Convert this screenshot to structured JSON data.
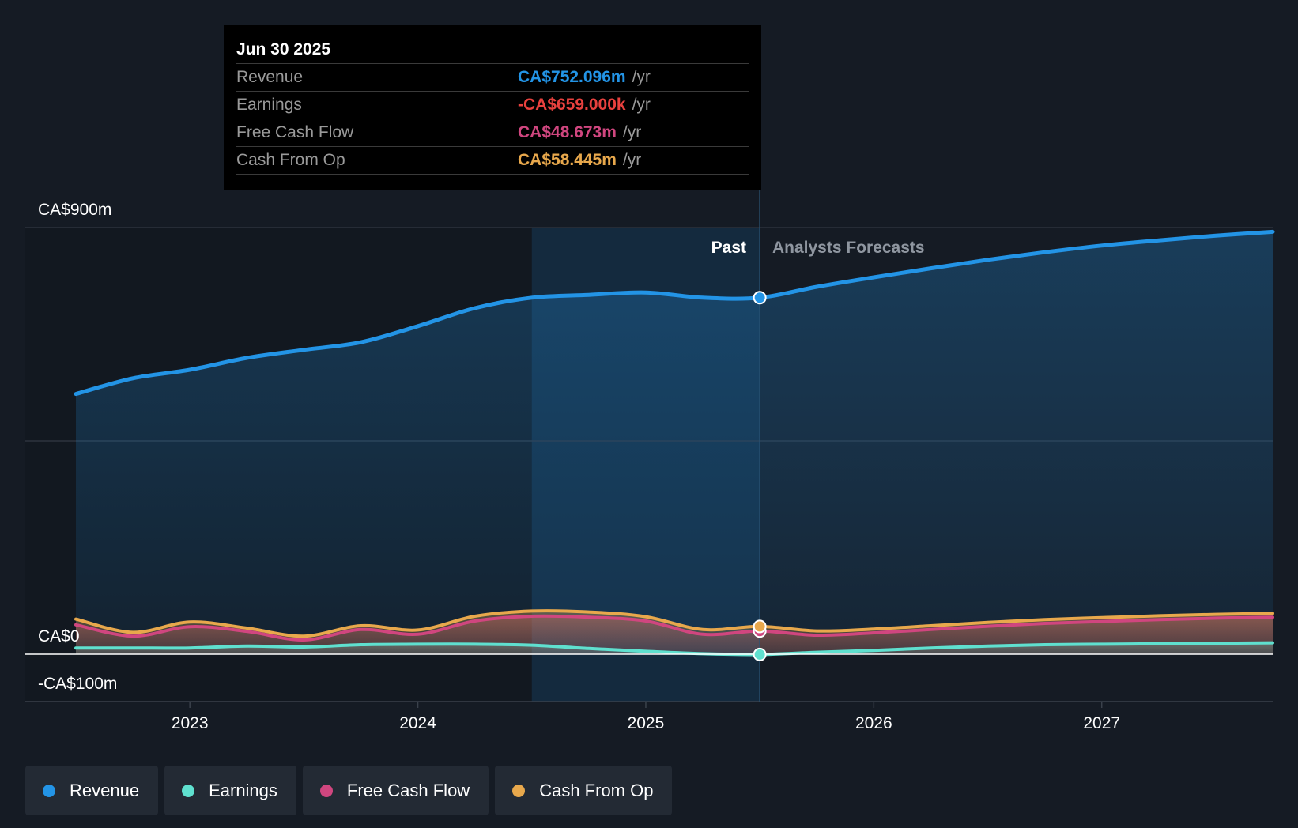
{
  "tooltip": {
    "date": "Jun 30 2025",
    "rows": [
      {
        "label": "Revenue",
        "value": "CA$752.096m",
        "unit": "/yr",
        "color": "#2394e6"
      },
      {
        "label": "Earnings",
        "value": "-CA$659.000k",
        "unit": "/yr",
        "color": "#e8413e"
      },
      {
        "label": "Free Cash Flow",
        "value": "CA$48.673m",
        "unit": "/yr",
        "color": "#d0467f"
      },
      {
        "label": "Cash From Op",
        "value": "CA$58.445m",
        "unit": "/yr",
        "color": "#e8a84c"
      }
    ]
  },
  "legend": [
    {
      "label": "Revenue",
      "color": "#2394e6"
    },
    {
      "label": "Earnings",
      "color": "#5fe0cf"
    },
    {
      "label": "Free Cash Flow",
      "color": "#d0467f"
    },
    {
      "label": "Cash From Op",
      "color": "#e8a84c"
    }
  ],
  "chart_data": {
    "type": "area",
    "y_axis_labels": [
      "CA$900m",
      "CA$0",
      "-CA$100m"
    ],
    "ylim": [
      -100,
      900
    ],
    "xlim": [
      2022.5,
      2027.75
    ],
    "x_ticks": [
      2023,
      2024,
      2025,
      2026,
      2027
    ],
    "x_tick_labels": [
      "2023",
      "2024",
      "2025",
      "2026",
      "2027"
    ],
    "past_label": "Past",
    "forecast_label": "Analysts Forecasts",
    "divider_x": 2025.5,
    "highlight_range": [
      2024.5,
      2025.5
    ],
    "series": [
      {
        "name": "Revenue",
        "color": "#2394e6",
        "points": [
          [
            2022.5,
            549
          ],
          [
            2022.75,
            582
          ],
          [
            2023,
            600
          ],
          [
            2023.25,
            625
          ],
          [
            2023.5,
            642
          ],
          [
            2023.75,
            658
          ],
          [
            2024,
            692
          ],
          [
            2024.25,
            730
          ],
          [
            2024.5,
            752
          ],
          [
            2024.75,
            758
          ],
          [
            2025,
            763
          ],
          [
            2025.25,
            752
          ],
          [
            2025.5,
            752
          ],
          [
            2025.75,
            775
          ],
          [
            2026,
            795
          ],
          [
            2026.25,
            814
          ],
          [
            2026.5,
            832
          ],
          [
            2026.75,
            848
          ],
          [
            2027,
            862
          ],
          [
            2027.25,
            873
          ],
          [
            2027.5,
            883
          ],
          [
            2027.75,
            891
          ]
        ]
      },
      {
        "name": "Earnings",
        "color": "#5fe0cf",
        "points": [
          [
            2022.5,
            13
          ],
          [
            2022.75,
            13
          ],
          [
            2023,
            13
          ],
          [
            2023.25,
            17
          ],
          [
            2023.5,
            15
          ],
          [
            2023.75,
            20
          ],
          [
            2024,
            21
          ],
          [
            2024.25,
            21
          ],
          [
            2024.5,
            19
          ],
          [
            2024.75,
            12
          ],
          [
            2025,
            6
          ],
          [
            2025.25,
            1
          ],
          [
            2025.5,
            -0.659
          ],
          [
            2025.75,
            4
          ],
          [
            2026,
            8
          ],
          [
            2026.25,
            13
          ],
          [
            2026.5,
            17
          ],
          [
            2026.75,
            20
          ],
          [
            2027,
            21
          ],
          [
            2027.25,
            22
          ],
          [
            2027.5,
            23
          ],
          [
            2027.75,
            24
          ]
        ]
      },
      {
        "name": "Free Cash Flow",
        "color": "#d0467f",
        "points": [
          [
            2022.5,
            62
          ],
          [
            2022.75,
            38
          ],
          [
            2023,
            58
          ],
          [
            2023.25,
            48
          ],
          [
            2023.5,
            30
          ],
          [
            2023.75,
            52
          ],
          [
            2024,
            42
          ],
          [
            2024.25,
            70
          ],
          [
            2024.5,
            80
          ],
          [
            2024.75,
            78
          ],
          [
            2025,
            70
          ],
          [
            2025.25,
            42
          ],
          [
            2025.5,
            48.673
          ],
          [
            2025.75,
            40
          ],
          [
            2026,
            45
          ],
          [
            2026.25,
            52
          ],
          [
            2026.5,
            59
          ],
          [
            2026.75,
            65
          ],
          [
            2027,
            69
          ],
          [
            2027.25,
            73
          ],
          [
            2027.5,
            76
          ],
          [
            2027.75,
            78
          ]
        ]
      },
      {
        "name": "Cash From Op",
        "color": "#e8a84c",
        "points": [
          [
            2022.5,
            74
          ],
          [
            2022.75,
            46
          ],
          [
            2023,
            68
          ],
          [
            2023.25,
            55
          ],
          [
            2023.5,
            38
          ],
          [
            2023.75,
            60
          ],
          [
            2024,
            51
          ],
          [
            2024.25,
            80
          ],
          [
            2024.5,
            91
          ],
          [
            2024.75,
            89
          ],
          [
            2025,
            79
          ],
          [
            2025.25,
            52
          ],
          [
            2025.5,
            58.445
          ],
          [
            2025.75,
            49
          ],
          [
            2026,
            53
          ],
          [
            2026.25,
            60
          ],
          [
            2026.5,
            67
          ],
          [
            2026.75,
            73
          ],
          [
            2027,
            77
          ],
          [
            2027.25,
            81
          ],
          [
            2027.5,
            84
          ],
          [
            2027.75,
            86
          ]
        ]
      }
    ]
  }
}
